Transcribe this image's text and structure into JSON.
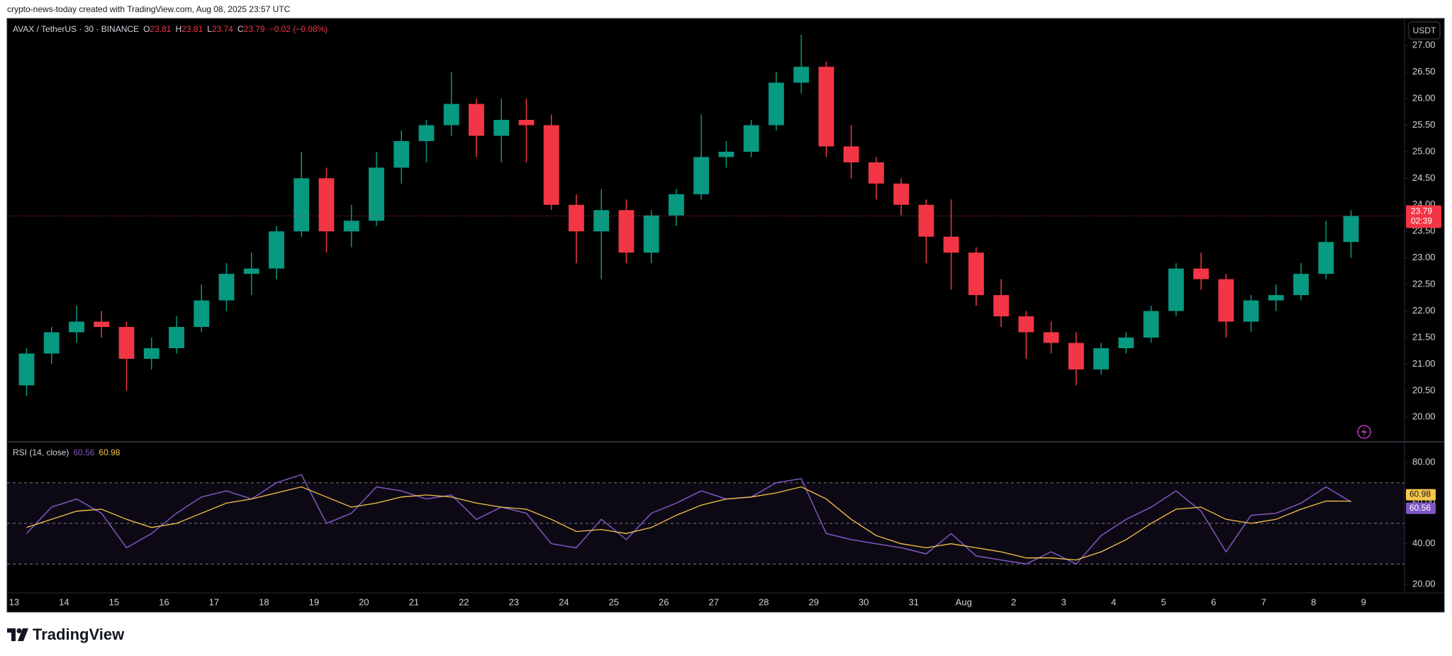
{
  "header": {
    "credit": "crypto-news-today created with TradingView.com, Aug 08, 2025 23:57 UTC"
  },
  "footer": {
    "brand": "TradingView"
  },
  "chart_data": [
    {
      "type": "candlestick",
      "title": "AVAX / TetherUS · 30 · BINANCE",
      "ohlc": [
        {
          "label": "O",
          "value": 23.81
        },
        {
          "label": "H",
          "value": 23.81
        },
        {
          "label": "L",
          "value": 23.74
        },
        {
          "label": "C",
          "value": 23.79
        }
      ],
      "change_label": "−0.02 (−0.08%)",
      "currency": "USDT",
      "last_price": 23.79,
      "countdown": "02:39",
      "up_color": "#089981",
      "down_color": "#f23645",
      "x": [
        0.25,
        0.75,
        1.25,
        1.75,
        2.25,
        2.75,
        3.25,
        3.75,
        4.25,
        4.75,
        5.25,
        5.75,
        6.25,
        6.75,
        7.25,
        7.75,
        8.25,
        8.75,
        9.25,
        9.75,
        10.25,
        10.75,
        11.25,
        11.75,
        12.25,
        12.75,
        13.25,
        13.75,
        14.25,
        14.75,
        15.25,
        15.75,
        16.25,
        16.75,
        17.25,
        17.75,
        18.25,
        18.75,
        19.25,
        19.75,
        20.25,
        20.75,
        21.25,
        21.75,
        22.25,
        22.75,
        23.25,
        23.75,
        24.25,
        24.75,
        25.25,
        25.75,
        26.25,
        26.75
      ],
      "open": [
        20.6,
        21.2,
        21.6,
        21.8,
        21.7,
        21.1,
        21.3,
        21.7,
        22.2,
        22.7,
        22.8,
        23.5,
        24.5,
        23.5,
        23.7,
        24.7,
        25.2,
        25.5,
        25.9,
        25.3,
        25.6,
        25.5,
        24.0,
        23.5,
        23.9,
        23.1,
        23.8,
        24.2,
        24.9,
        25.0,
        25.5,
        26.3,
        26.6,
        25.1,
        24.8,
        24.4,
        24.0,
        23.4,
        23.1,
        22.3,
        21.9,
        21.6,
        21.4,
        20.9,
        21.3,
        21.5,
        22.0,
        22.8,
        22.6,
        21.8,
        22.2,
        22.3,
        22.7,
        23.3
      ],
      "high": [
        21.3,
        21.7,
        22.1,
        22.0,
        21.8,
        21.5,
        21.9,
        22.5,
        22.9,
        23.1,
        23.6,
        25.0,
        24.7,
        24.0,
        25.0,
        25.4,
        25.6,
        26.5,
        26.0,
        26.0,
        26.0,
        25.7,
        24.2,
        24.3,
        24.1,
        23.9,
        24.3,
        25.7,
        25.2,
        25.6,
        26.5,
        27.2,
        26.7,
        25.5,
        24.9,
        24.5,
        24.1,
        24.1,
        23.2,
        22.6,
        22.0,
        21.8,
        21.6,
        21.4,
        21.6,
        22.1,
        22.9,
        23.1,
        22.7,
        22.3,
        22.5,
        22.9,
        23.7,
        23.9
      ],
      "low": [
        20.4,
        21.0,
        21.4,
        21.5,
        20.5,
        20.9,
        21.2,
        21.6,
        22.0,
        22.3,
        22.6,
        23.4,
        23.1,
        23.2,
        23.6,
        24.4,
        24.8,
        25.3,
        24.9,
        24.8,
        24.8,
        23.9,
        22.9,
        22.6,
        22.9,
        22.9,
        23.6,
        24.1,
        24.7,
        24.9,
        25.4,
        26.1,
        24.9,
        24.5,
        24.1,
        23.8,
        22.9,
        22.4,
        22.1,
        21.7,
        21.1,
        21.2,
        20.6,
        20.8,
        21.2,
        21.4,
        21.9,
        22.4,
        21.5,
        21.6,
        22.0,
        22.2,
        22.6,
        23.0
      ],
      "close": [
        21.2,
        21.6,
        21.8,
        21.7,
        21.1,
        21.3,
        21.7,
        22.2,
        22.7,
        22.8,
        23.5,
        24.5,
        23.5,
        23.7,
        24.7,
        25.2,
        25.5,
        25.9,
        25.3,
        25.6,
        25.5,
        24.0,
        23.5,
        23.9,
        23.1,
        23.8,
        24.2,
        24.9,
        25.0,
        25.5,
        26.3,
        26.6,
        25.1,
        24.8,
        24.4,
        24.0,
        23.4,
        23.1,
        22.3,
        21.9,
        21.6,
        21.4,
        20.9,
        21.3,
        21.5,
        22.0,
        22.8,
        22.6,
        21.8,
        22.2,
        22.3,
        22.7,
        23.3,
        23.79
      ],
      "xlim": [
        -0.14,
        27.82
      ],
      "xticks": [
        {
          "value": 0,
          "label": "13"
        },
        {
          "value": 1,
          "label": "14"
        },
        {
          "value": 2,
          "label": "15"
        },
        {
          "value": 3,
          "label": "16"
        },
        {
          "value": 4,
          "label": "17"
        },
        {
          "value": 5,
          "label": "18"
        },
        {
          "value": 6,
          "label": "19"
        },
        {
          "value": 7,
          "label": "20"
        },
        {
          "value": 8,
          "label": "21"
        },
        {
          "value": 9,
          "label": "22"
        },
        {
          "value": 10,
          "label": "23"
        },
        {
          "value": 11,
          "label": "24"
        },
        {
          "value": 12,
          "label": "25"
        },
        {
          "value": 13,
          "label": "26"
        },
        {
          "value": 14,
          "label": "27"
        },
        {
          "value": 15,
          "label": "28"
        },
        {
          "value": 16,
          "label": "29"
        },
        {
          "value": 17,
          "label": "30"
        },
        {
          "value": 18,
          "label": "31"
        },
        {
          "value": 19,
          "label": "Aug"
        },
        {
          "value": 20,
          "label": "2"
        },
        {
          "value": 21,
          "label": "3"
        },
        {
          "value": 22,
          "label": "4"
        },
        {
          "value": 23,
          "label": "5"
        },
        {
          "value": 24,
          "label": "6"
        },
        {
          "value": 25,
          "label": "7"
        },
        {
          "value": 26,
          "label": "8"
        },
        {
          "value": 27,
          "label": "9"
        }
      ],
      "ylim": [
        19.55,
        27.51
      ],
      "yticks": [
        {
          "value": 20,
          "label": "20.00"
        },
        {
          "value": 20.5,
          "label": "20.50"
        },
        {
          "value": 21,
          "label": "21.00"
        },
        {
          "value": 21.5,
          "label": "21.50"
        },
        {
          "value": 22,
          "label": "22.00"
        },
        {
          "value": 22.5,
          "label": "22.50"
        },
        {
          "value": 23,
          "label": "23.00"
        },
        {
          "value": 23.5,
          "label": "23.50"
        },
        {
          "value": 24,
          "label": "24.00"
        },
        {
          "value": 24.5,
          "label": "24.50"
        },
        {
          "value": 25,
          "label": "25.00"
        },
        {
          "value": 25.5,
          "label": "25.50"
        },
        {
          "value": 26,
          "label": "26.00"
        },
        {
          "value": 26.5,
          "label": "26.50"
        },
        {
          "value": 27,
          "label": "27.00"
        }
      ]
    },
    {
      "type": "line",
      "title": "RSI (14, close)",
      "series": [
        {
          "color": "#7e57c2",
          "values": [
            45,
            58,
            62,
            55,
            38,
            45,
            55,
            63,
            66,
            62,
            70,
            74,
            50,
            55,
            68,
            66,
            62,
            64,
            52,
            58,
            55,
            40,
            38,
            52,
            42,
            55,
            60,
            66,
            62,
            63,
            70,
            72,
            45,
            42,
            40,
            38,
            35,
            45,
            34,
            32,
            30,
            36,
            30,
            44,
            52,
            58,
            66,
            56,
            36,
            54,
            55,
            60,
            68,
            60.56
          ]
        },
        {
          "color": "#f7c548",
          "values": [
            48,
            52,
            56,
            57,
            52,
            48,
            50,
            55,
            60,
            62,
            65,
            68,
            63,
            58,
            60,
            63,
            64,
            63,
            60,
            58,
            57,
            52,
            46,
            47,
            45,
            48,
            54,
            59,
            62,
            63,
            65,
            68,
            62,
            52,
            44,
            40,
            38,
            40,
            38,
            36,
            33,
            33,
            32,
            36,
            42,
            50,
            57,
            58,
            52,
            50,
            52,
            57,
            61,
            60.98
          ]
        }
      ],
      "bands": [
        70,
        50,
        30
      ],
      "ylim": [
        15.8,
        89.8
      ],
      "yticks": [
        {
          "value": 20,
          "label": "20.00"
        },
        {
          "value": 40,
          "label": "40.00"
        },
        {
          "value": 60,
          "label": "60.00"
        },
        {
          "value": 80,
          "label": "80.00"
        }
      ]
    }
  ]
}
